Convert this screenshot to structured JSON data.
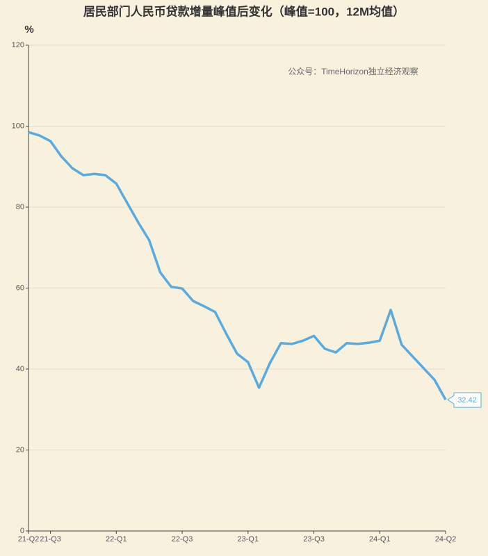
{
  "chart_data": {
    "type": "line",
    "title": "居民部门人民币贷款增量峰值后变化（峰值=100，12M均值）",
    "y_label": "%",
    "annotation": "公众号：TimeHorizon独立经济观察",
    "categories": [
      "21-Q2",
      null,
      "21-Q3",
      null,
      null,
      null,
      null,
      null,
      "22-Q1",
      null,
      null,
      null,
      null,
      null,
      "22-Q3",
      null,
      null,
      null,
      null,
      null,
      "23-Q1",
      null,
      null,
      null,
      null,
      null,
      "23-Q3",
      null,
      null,
      null,
      null,
      null,
      "24-Q1",
      null,
      null,
      null,
      null,
      null,
      "24-Q2"
    ],
    "values": [
      98.5,
      97.7,
      96.3,
      92.5,
      89.6,
      87.9,
      88.2,
      87.9,
      85.8,
      81.0,
      76.2,
      71.8,
      63.9,
      60.3,
      59.9,
      56.8,
      55.5,
      54.1,
      48.8,
      43.8,
      41.7,
      35.4,
      41.5,
      46.4,
      46.2,
      47.0,
      48.2,
      45.0,
      44.1,
      46.4,
      46.2,
      46.5,
      47.0,
      54.6,
      46.0,
      43.1,
      40.2,
      37.3,
      32.42
    ],
    "color": "#5aaadd",
    "ylim": [
      0,
      120
    ],
    "yticks": [
      0,
      20,
      40,
      60,
      80,
      100,
      120
    ],
    "grid": true
  }
}
